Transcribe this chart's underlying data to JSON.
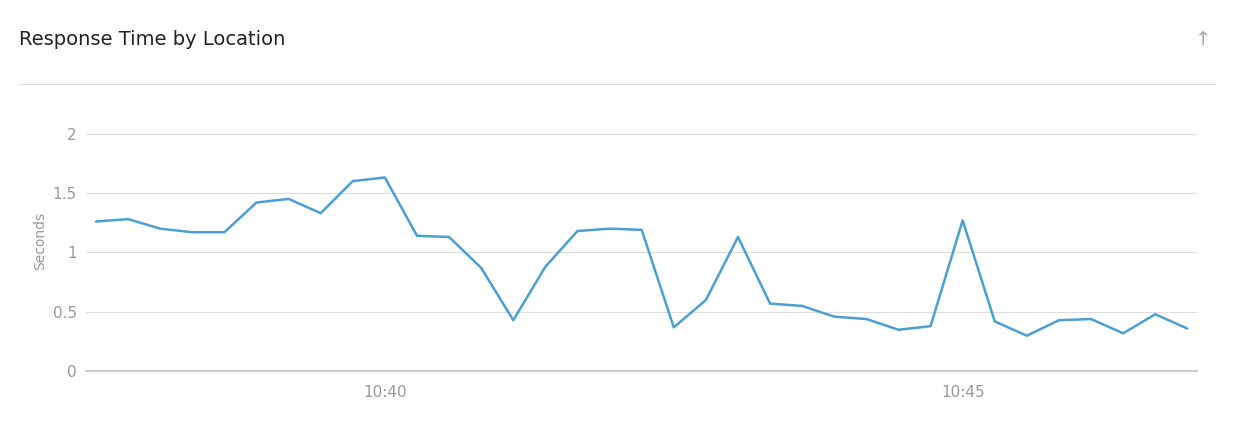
{
  "title": "Response Time by Location",
  "ylabel": "Seconds",
  "background_color": "#ffffff",
  "line_color": "#4a9fd4",
  "line_width": 1.8,
  "ylim": [
    0,
    2.2
  ],
  "yticks": [
    0,
    0.5,
    1,
    1.5,
    2
  ],
  "ytick_labels": [
    "0",
    "0.5",
    "1",
    "1.5",
    "2"
  ],
  "grid_color": "#dddddd",
  "title_fontsize": 14,
  "axis_label_fontsize": 10,
  "tick_fontsize": 11,
  "x_values": [
    0,
    1,
    2,
    3,
    4,
    5,
    6,
    7,
    8,
    9,
    10,
    11,
    12,
    13,
    14,
    15,
    16,
    17,
    18,
    19,
    20,
    21,
    22,
    23,
    24,
    25,
    26,
    27,
    28,
    29,
    30,
    31,
    32,
    33,
    34
  ],
  "y_values": [
    1.26,
    1.28,
    1.2,
    1.17,
    1.17,
    1.42,
    1.45,
    1.33,
    1.6,
    1.63,
    1.14,
    1.13,
    0.87,
    0.43,
    0.88,
    1.18,
    1.2,
    1.19,
    0.37,
    0.6,
    1.13,
    0.57,
    0.55,
    0.46,
    0.44,
    0.35,
    0.38,
    1.27,
    0.42,
    0.3,
    0.43,
    0.44,
    0.32,
    0.48,
    0.36
  ],
  "xtick_positions": [
    9,
    27
  ],
  "xtick_labels": [
    "10:40",
    "10:45"
  ],
  "separator_line_color": "#dddddd",
  "tick_color": "#999999",
  "spine_color": "#cccccc"
}
